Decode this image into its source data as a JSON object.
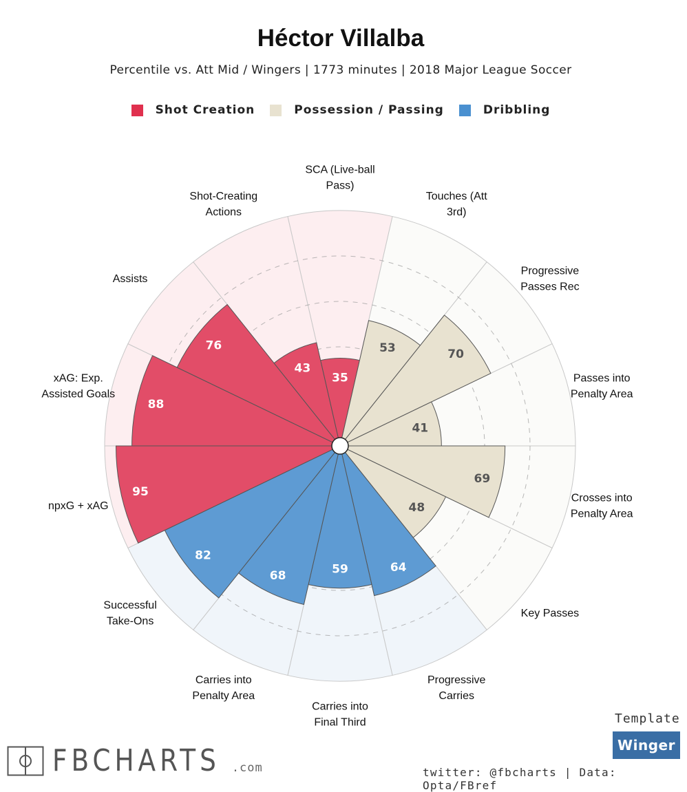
{
  "header": {
    "title": "Héctor Villalba",
    "subtitle": "Percentile vs. Att Mid / Wingers | 1773 minutes | 2018 Major League Soccer"
  },
  "legend": [
    {
      "label": "Shot Creation",
      "color": "#e0304e"
    },
    {
      "label": "Possession / Passing",
      "color": "#e8e2d0"
    },
    {
      "label": "Dribbling",
      "color": "#4a90d0"
    }
  ],
  "chart_data": {
    "type": "radar",
    "title": "Héctor Villalba",
    "scale": [
      0,
      100
    ],
    "grid": "dashed rings",
    "params": [
      {
        "label": [
          "SCA (Live-ball",
          "Pass)"
        ],
        "value": 35,
        "group": "Shot Creation"
      },
      {
        "label": [
          "Touches (Att",
          "3rd)"
        ],
        "value": 53,
        "group": "Possession / Passing"
      },
      {
        "label": [
          "Progressive",
          "Passes Rec"
        ],
        "value": 70,
        "group": "Possession / Passing"
      },
      {
        "label": [
          "Passes into",
          "Penalty Area"
        ],
        "value": 41,
        "group": "Possession / Passing"
      },
      {
        "label": [
          "Crosses into",
          "Penalty Area"
        ],
        "value": 69,
        "group": "Possession / Passing"
      },
      {
        "label": [
          "Key Passes"
        ],
        "value": 48,
        "group": "Possession / Passing"
      },
      {
        "label": [
          "Progressive",
          "Carries"
        ],
        "value": 64,
        "group": "Dribbling"
      },
      {
        "label": [
          "Carries into",
          "Final Third"
        ],
        "value": 59,
        "group": "Dribbling"
      },
      {
        "label": [
          "Carries into",
          "Penalty Area"
        ],
        "value": 68,
        "group": "Dribbling"
      },
      {
        "label": [
          "Successful",
          "Take-Ons"
        ],
        "value": 82,
        "group": "Dribbling"
      },
      {
        "label": [
          "npxG + xAG"
        ],
        "value": 95,
        "group": "Shot Creation"
      },
      {
        "label": [
          "xAG: Exp.",
          "Assisted Goals"
        ],
        "value": 88,
        "group": "Shot Creation"
      },
      {
        "label": [
          "Assists"
        ],
        "value": 76,
        "group": "Shot Creation"
      },
      {
        "label": [
          "Shot-Creating",
          "Actions"
        ],
        "value": 43,
        "group": "Shot Creation"
      }
    ],
    "group_colors": {
      "Shot Creation": {
        "fill": "#e24d68",
        "bg": "#fdeef0",
        "text": "#ffffff"
      },
      "Possession / Passing": {
        "fill": "#e8e2d0",
        "bg": "#fbfbf9",
        "text": "#555555"
      },
      "Dribbling": {
        "fill": "#5e9bd3",
        "bg": "#f0f5fa",
        "text": "#ffffff"
      }
    }
  },
  "footer": {
    "template_caption": "Template",
    "template_name": "Winger",
    "credit": "twitter: @fbcharts | Data: Opta/FBref",
    "logo_text": "FBCHARTS",
    "logo_suffix": ".com"
  }
}
